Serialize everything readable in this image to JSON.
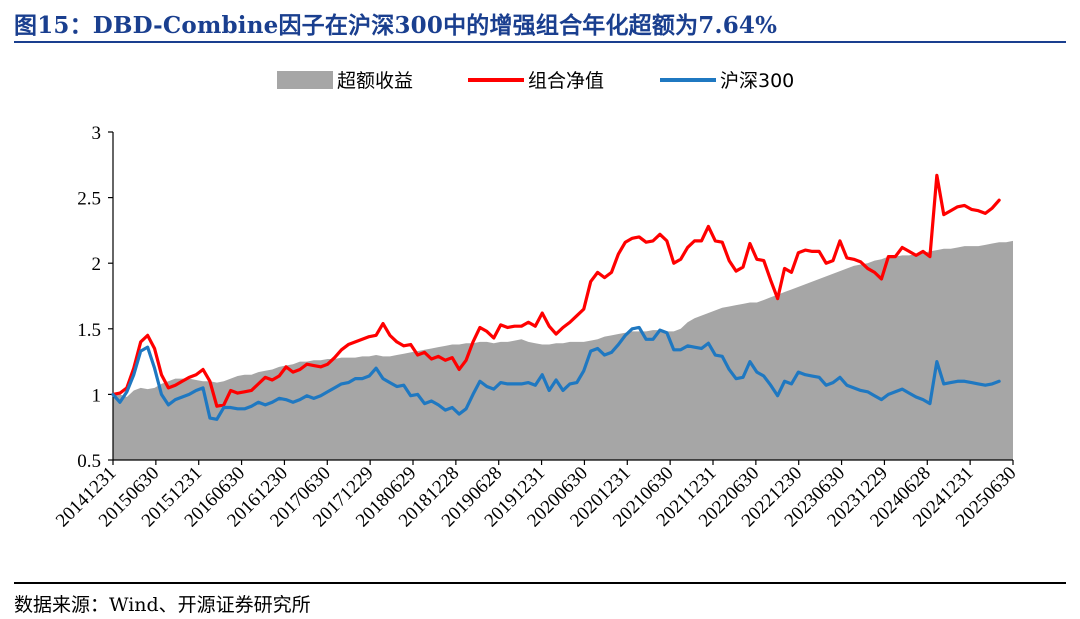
{
  "header": {
    "title": "图15：DBD-Combine因子在沪深300中的增强组合年化超额为7.64%"
  },
  "footer": {
    "source": "数据来源：Wind、开源证券研究所"
  },
  "chart_data": {
    "type": "line",
    "title": "",
    "xlabel": "",
    "ylabel": "",
    "ylim": [
      0.5,
      3
    ],
    "yticks": [
      "0.5",
      "1",
      "1.5",
      "2",
      "2.5",
      "3"
    ],
    "xticks": [
      "20141231",
      "20150630",
      "20151231",
      "20160630",
      "20161230",
      "20170630",
      "20171229",
      "20180629",
      "20181228",
      "20190628",
      "20191231",
      "20200630",
      "20201231",
      "20210630",
      "20211231",
      "20220630",
      "20221230",
      "20230630",
      "20231229",
      "20240628",
      "20241231",
      "20250630"
    ],
    "legend_position": "top",
    "series": [
      {
        "name": "超额收益",
        "kind": "area",
        "color": "#a6a6a6",
        "values": [
          1.0,
          1.0,
          0.98,
          1.03,
          1.05,
          1.04,
          1.05,
          1.08,
          1.1,
          1.12,
          1.12,
          1.12,
          1.11,
          1.1,
          1.1,
          1.09,
          1.1,
          1.12,
          1.14,
          1.15,
          1.15,
          1.17,
          1.18,
          1.19,
          1.21,
          1.22,
          1.23,
          1.25,
          1.25,
          1.26,
          1.26,
          1.27,
          1.27,
          1.28,
          1.28,
          1.28,
          1.29,
          1.29,
          1.3,
          1.29,
          1.29,
          1.3,
          1.31,
          1.32,
          1.33,
          1.34,
          1.35,
          1.36,
          1.37,
          1.38,
          1.38,
          1.39,
          1.39,
          1.4,
          1.4,
          1.39,
          1.4,
          1.4,
          1.41,
          1.42,
          1.4,
          1.39,
          1.38,
          1.38,
          1.39,
          1.39,
          1.4,
          1.4,
          1.4,
          1.41,
          1.42,
          1.44,
          1.45,
          1.46,
          1.47,
          1.48,
          1.48,
          1.48,
          1.49,
          1.49,
          1.48,
          1.48,
          1.5,
          1.55,
          1.58,
          1.6,
          1.62,
          1.64,
          1.66,
          1.67,
          1.68,
          1.69,
          1.7,
          1.7,
          1.72,
          1.74,
          1.76,
          1.78,
          1.8,
          1.82,
          1.84,
          1.86,
          1.88,
          1.9,
          1.92,
          1.94,
          1.96,
          1.98,
          1.99,
          2.0,
          2.02,
          2.03,
          2.05,
          2.05,
          2.06,
          2.06,
          2.07,
          2.08,
          2.09,
          2.1,
          2.11,
          2.11,
          2.12,
          2.13,
          2.13,
          2.13,
          2.14,
          2.15,
          2.16,
          2.16,
          2.17
        ]
      },
      {
        "name": "组合净值",
        "kind": "line",
        "color": "#ff0000",
        "values": [
          1.0,
          1.01,
          1.05,
          1.2,
          1.4,
          1.45,
          1.35,
          1.15,
          1.05,
          1.07,
          1.1,
          1.13,
          1.15,
          1.19,
          1.1,
          0.91,
          0.92,
          1.03,
          1.01,
          1.02,
          1.03,
          1.08,
          1.13,
          1.11,
          1.14,
          1.21,
          1.17,
          1.19,
          1.23,
          1.22,
          1.21,
          1.23,
          1.28,
          1.34,
          1.38,
          1.4,
          1.42,
          1.44,
          1.45,
          1.54,
          1.45,
          1.4,
          1.37,
          1.38,
          1.3,
          1.32,
          1.27,
          1.29,
          1.26,
          1.28,
          1.19,
          1.26,
          1.4,
          1.51,
          1.48,
          1.43,
          1.53,
          1.51,
          1.52,
          1.52,
          1.55,
          1.52,
          1.62,
          1.52,
          1.46,
          1.51,
          1.55,
          1.6,
          1.65,
          1.86,
          1.93,
          1.89,
          1.93,
          2.07,
          2.16,
          2.19,
          2.2,
          2.16,
          2.17,
          2.22,
          2.17,
          2.0,
          2.03,
          2.12,
          2.17,
          2.17,
          2.28,
          2.17,
          2.16,
          2.02,
          1.94,
          1.97,
          2.15,
          2.03,
          2.02,
          1.87,
          1.73,
          1.96,
          1.93,
          2.08,
          2.1,
          2.09,
          2.09,
          2.0,
          2.02,
          2.17,
          2.04,
          2.03,
          2.01,
          1.96,
          1.93,
          1.88,
          2.05,
          2.05,
          2.12,
          2.09,
          2.06,
          2.09,
          2.05,
          2.67,
          2.37,
          2.4,
          2.43,
          2.44,
          2.41,
          2.4,
          2.38,
          2.42,
          2.48
        ]
      },
      {
        "name": "沪深300",
        "kind": "line",
        "color": "#1f78c1",
        "values": [
          1.0,
          0.94,
          1.02,
          1.15,
          1.33,
          1.36,
          1.2,
          1.0,
          0.92,
          0.96,
          0.98,
          1.0,
          1.03,
          1.05,
          0.82,
          0.81,
          0.9,
          0.9,
          0.89,
          0.89,
          0.91,
          0.94,
          0.92,
          0.94,
          0.97,
          0.96,
          0.94,
          0.96,
          0.99,
          0.97,
          0.99,
          1.02,
          1.05,
          1.08,
          1.09,
          1.12,
          1.12,
          1.14,
          1.2,
          1.12,
          1.09,
          1.06,
          1.07,
          0.99,
          1.0,
          0.93,
          0.95,
          0.92,
          0.88,
          0.9,
          0.85,
          0.89,
          1.0,
          1.1,
          1.06,
          1.04,
          1.09,
          1.08,
          1.08,
          1.08,
          1.09,
          1.07,
          1.15,
          1.03,
          1.11,
          1.03,
          1.08,
          1.09,
          1.18,
          1.33,
          1.35,
          1.3,
          1.32,
          1.38,
          1.45,
          1.5,
          1.51,
          1.42,
          1.42,
          1.49,
          1.47,
          1.34,
          1.34,
          1.37,
          1.36,
          1.35,
          1.39,
          1.3,
          1.29,
          1.19,
          1.12,
          1.13,
          1.25,
          1.17,
          1.14,
          1.07,
          0.99,
          1.1,
          1.08,
          1.17,
          1.15,
          1.14,
          1.13,
          1.07,
          1.09,
          1.13,
          1.07,
          1.05,
          1.03,
          1.02,
          0.99,
          0.96,
          1.0,
          1.02,
          1.04,
          1.01,
          0.98,
          0.96,
          0.93,
          1.25,
          1.08,
          1.09,
          1.1,
          1.1,
          1.09,
          1.08,
          1.07,
          1.08,
          1.1
        ]
      }
    ]
  }
}
